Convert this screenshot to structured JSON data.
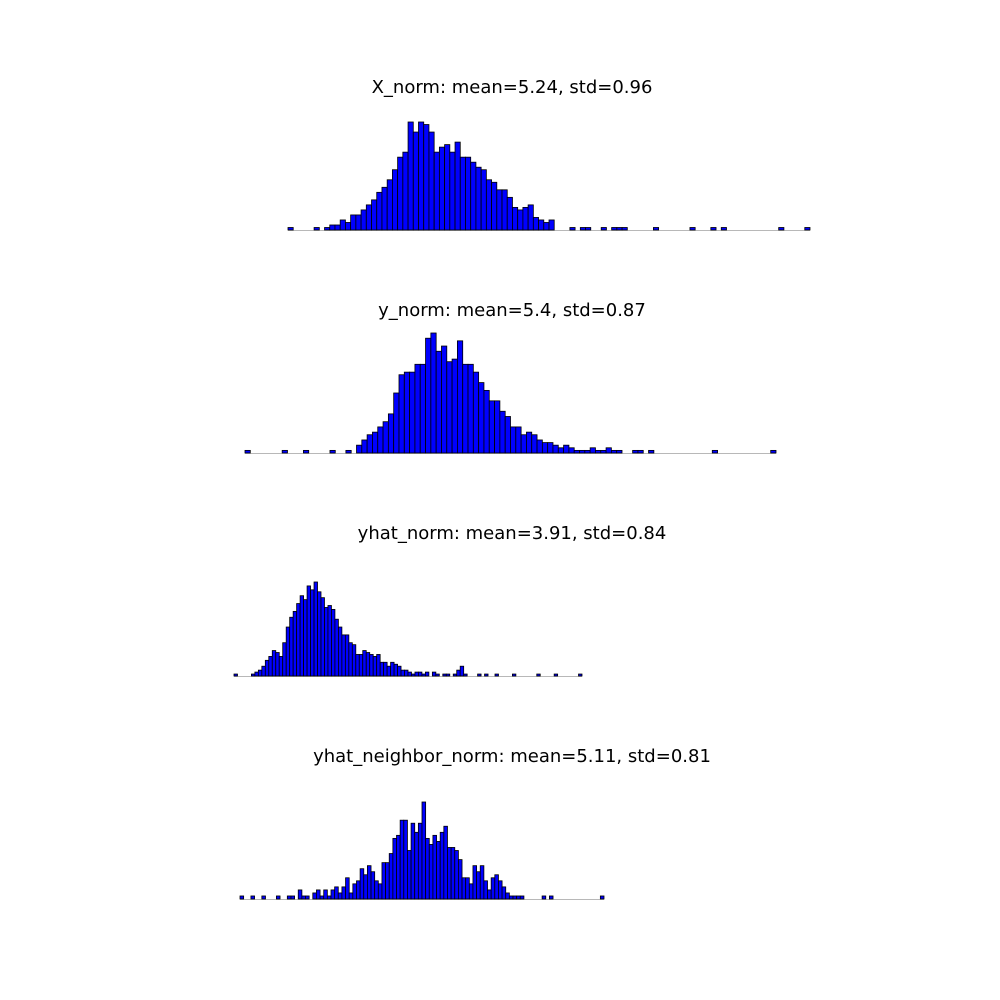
{
  "figure": {
    "background": "#ffffff"
  },
  "chart_data": [
    {
      "type": "bar",
      "title": "X_norm: mean=5.24, std=0.96",
      "bar_color": "#0000ff",
      "edge_color": "#000000",
      "baseline_color": "#b8b8b8",
      "grid": false,
      "axes_visible": false,
      "bins": 100,
      "values": [
        1,
        0,
        0,
        0,
        0,
        1,
        0,
        1,
        2,
        2,
        4,
        3,
        6,
        6,
        8,
        10,
        12,
        15,
        17,
        20,
        24,
        29,
        31,
        43,
        39,
        43,
        42,
        39,
        31,
        33,
        34,
        31,
        35,
        29,
        29,
        27,
        25,
        24,
        20,
        19,
        16,
        16,
        13,
        9,
        8,
        9,
        10,
        5,
        4,
        3,
        4,
        0,
        0,
        0,
        1,
        0,
        1,
        1,
        0,
        0,
        1,
        0,
        1,
        1,
        1,
        0,
        0,
        0,
        0,
        0,
        1,
        0,
        0,
        0,
        0,
        0,
        0,
        1,
        0,
        0,
        0,
        1,
        0,
        1,
        0,
        0,
        0,
        0,
        0,
        0,
        0,
        0,
        0,
        0,
        1,
        0,
        0,
        0,
        0,
        1
      ]
    },
    {
      "type": "bar",
      "title": "y_norm: mean=5.4, std=0.87",
      "bar_color": "#0000ff",
      "edge_color": "#000000",
      "baseline_color": "#b8b8b8",
      "grid": false,
      "axes_visible": false,
      "bins": 100,
      "values": [
        1,
        0,
        0,
        0,
        0,
        0,
        0,
        1,
        0,
        0,
        0,
        1,
        0,
        0,
        0,
        0,
        1,
        0,
        0,
        1,
        0,
        3,
        5,
        7,
        8,
        10,
        12,
        15,
        23,
        30,
        31,
        31,
        34,
        34,
        44,
        46,
        39,
        41,
        35,
        36,
        43,
        34,
        34,
        31,
        27,
        24,
        20,
        20,
        16,
        14,
        10,
        10,
        7,
        8,
        7,
        5,
        4,
        4,
        3,
        2,
        3,
        2,
        1,
        1,
        1,
        2,
        1,
        1,
        2,
        1,
        1,
        0,
        0,
        1,
        1,
        0,
        1,
        0,
        0,
        0,
        0,
        0,
        0,
        0,
        0,
        0,
        0,
        0,
        1,
        0,
        0,
        0,
        0,
        0,
        0,
        0,
        0,
        0,
        0,
        1
      ]
    },
    {
      "type": "bar",
      "title": "yhat_norm: mean=3.91, std=0.84",
      "bar_color": "#0000ff",
      "edge_color": "#000000",
      "baseline_color": "#b8b8b8",
      "grid": false,
      "axes_visible": false,
      "bins": 100,
      "values": [
        1,
        0,
        0,
        0,
        0,
        1,
        2,
        3,
        5,
        8,
        10,
        13,
        12,
        10,
        17,
        25,
        30,
        33,
        37,
        41,
        39,
        46,
        44,
        48,
        43,
        40,
        35,
        36,
        34,
        29,
        25,
        21,
        21,
        17,
        16,
        11,
        11,
        13,
        12,
        11,
        10,
        11,
        7,
        7,
        5,
        7,
        6,
        5,
        3,
        3,
        2,
        1,
        2,
        2,
        1,
        2,
        0,
        2,
        1,
        0,
        1,
        1,
        0,
        1,
        3,
        5,
        1,
        0,
        0,
        0,
        1,
        0,
        1,
        0,
        0,
        1,
        0,
        0,
        0,
        0,
        1,
        0,
        0,
        0,
        0,
        0,
        0,
        1,
        0,
        0,
        0,
        0,
        1,
        0,
        0,
        0,
        0,
        0,
        0,
        1
      ]
    },
    {
      "type": "bar",
      "title": "yhat_neighbor_norm: mean=5.11, std=0.81",
      "bar_color": "#0000ff",
      "edge_color": "#000000",
      "baseline_color": "#b8b8b8",
      "grid": false,
      "axes_visible": false,
      "bins": 100,
      "values": [
        1,
        0,
        0,
        1,
        0,
        0,
        1,
        0,
        0,
        0,
        1,
        0,
        0,
        1,
        1,
        0,
        3,
        1,
        1,
        0,
        2,
        3,
        1,
        3,
        1,
        3,
        4,
        2,
        4,
        7,
        2,
        5,
        6,
        10,
        8,
        11,
        9,
        6,
        5,
        12,
        12,
        15,
        20,
        21,
        26,
        26,
        16,
        25,
        22,
        25,
        32,
        20,
        18,
        21,
        19,
        22,
        24,
        17,
        17,
        16,
        13,
        7,
        7,
        5,
        11,
        9,
        11,
        6,
        3,
        7,
        8,
        6,
        4,
        2,
        1,
        1,
        1,
        1,
        0,
        0,
        0,
        0,
        0,
        1,
        0,
        1,
        0,
        0,
        0,
        0,
        0,
        0,
        0,
        0,
        0,
        0,
        0,
        0,
        0,
        1
      ]
    }
  ]
}
